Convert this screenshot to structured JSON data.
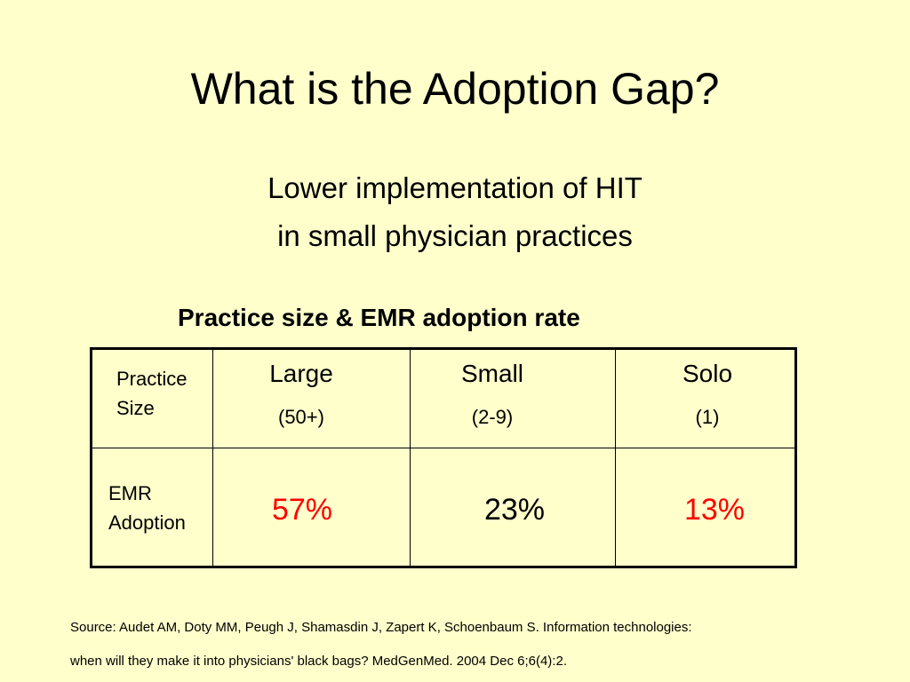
{
  "slide": {
    "title": "What is the Adoption Gap?",
    "subtitle_line1": "Lower implementation of HIT",
    "subtitle_line2": "in small physician practices",
    "table_caption": "Practice size & EMR adoption rate"
  },
  "table": {
    "row1_label_line1": "Practice",
    "row1_label_line2": "Size",
    "row2_label_line1": "EMR",
    "row2_label_line2": "Adoption",
    "columns": [
      {
        "name": "Large",
        "size": "(50+)",
        "adoption": "57%"
      },
      {
        "name": "Small",
        "size": "(2-9)",
        "adoption": "23%"
      },
      {
        "name": "Solo",
        "size": "(1)",
        "adoption": "13%"
      }
    ],
    "colors": {
      "highlight": "#FF0000",
      "normal": "#000000"
    }
  },
  "source": {
    "line1": "Source: Audet AM, Doty MM, Peugh J, Shamasdin J, Zapert K, Schoenbaum S. Information technologies:",
    "line2": "when will they make it into physicians' black bags? MedGenMed. 2004 Dec 6;6(4):2."
  }
}
